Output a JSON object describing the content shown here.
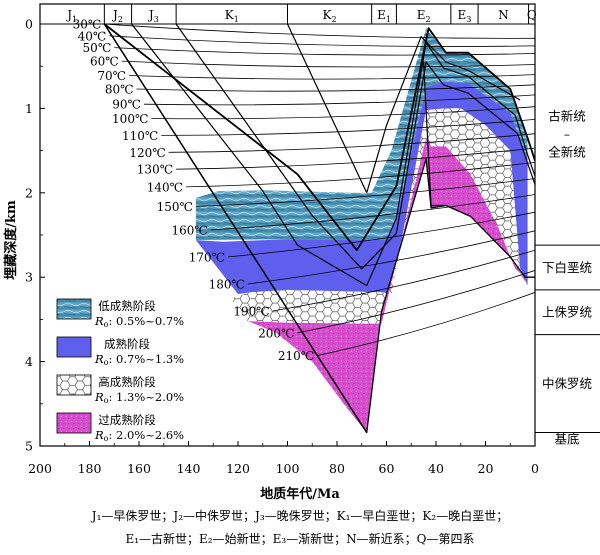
{
  "periods": [
    {
      "sym": "J",
      "sub": "1",
      "from": 200,
      "to": 174
    },
    {
      "sym": "J",
      "sub": "2",
      "from": 174,
      "to": 163
    },
    {
      "sym": "J",
      "sub": "3",
      "from": 163,
      "to": 145
    },
    {
      "sym": "K",
      "sub": "1",
      "from": 145,
      "to": 100
    },
    {
      "sym": "K",
      "sub": "2",
      "from": 100,
      "to": 66
    },
    {
      "sym": "E",
      "sub": "1",
      "from": 66,
      "to": 56
    },
    {
      "sym": "E",
      "sub": "2",
      "from": 56,
      "to": 34
    },
    {
      "sym": "E",
      "sub": "3",
      "from": 34,
      "to": 23
    },
    {
      "sym": "N",
      "sub": "",
      "from": 23,
      "to": 2.6
    },
    {
      "sym": "Q",
      "sub": "",
      "from": 2.6,
      "to": 0
    }
  ],
  "y_axis": {
    "label": "埋藏深度/km",
    "ticks": [
      "0",
      "1",
      "2",
      "3",
      "4",
      "5"
    ],
    "range": [
      0,
      5
    ]
  },
  "x_axis": {
    "label": "地质年代/Ma",
    "ticks": [
      "200",
      "180",
      "160",
      "140",
      "120",
      "100",
      "80",
      "60",
      "40",
      "20",
      "0"
    ],
    "range": [
      200,
      0
    ]
  },
  "isotherms": [
    "30℃",
    "40℃",
    "50℃",
    "60℃",
    "70℃",
    "80℃",
    "90℃",
    "100℃",
    "110℃",
    "120℃",
    "130℃",
    "140℃",
    "150℃",
    "160℃",
    "170℃",
    "180℃",
    "190℃",
    "200℃",
    "210℃"
  ],
  "strata": [
    {
      "name": "古新统",
      "name2": "全新统",
      "sep": "–",
      "top": 0,
      "bottom": 2.62
    },
    {
      "name": "下白垩统",
      "top": 2.62,
      "bottom": 3.15
    },
    {
      "name": "上侏罗统",
      "top": 3.15,
      "bottom": 3.68
    },
    {
      "name": "中侏罗统",
      "top": 3.68,
      "bottom": 4.84
    },
    {
      "name": "基底",
      "top": 4.84,
      "bottom": 5.0
    }
  ],
  "legend": [
    {
      "title": "低成熟阶段",
      "range": ": 0.5%~0.7%",
      "pattern": "low"
    },
    {
      "title": "成熟阶段",
      "range": ": 0.7%~1.3%",
      "pattern": "mature"
    },
    {
      "title": "高成熟阶段",
      "range": ": 1.3%~2.0%",
      "pattern": "high"
    },
    {
      "title": "过成熟阶段",
      "range": ": 2.0%~2.6%",
      "pattern": "over"
    }
  ],
  "legend_symbol": {
    "base": "R",
    "sub": "o"
  },
  "caption": {
    "line1": "J₁—早侏罗世；J₂—中侏罗世；J₃—晚侏罗世；K₁—早白垩世；K₂—晚白垩世；",
    "line2": "E₁—古新世；E₂—始新世；E₃—渐新世；N—新近系；Q—第四系"
  },
  "colors": {
    "low": "#4d93b4",
    "mature": "#5f5fee",
    "high": "#ffffff",
    "over": "#d94fcf",
    "line": "#000000"
  }
}
